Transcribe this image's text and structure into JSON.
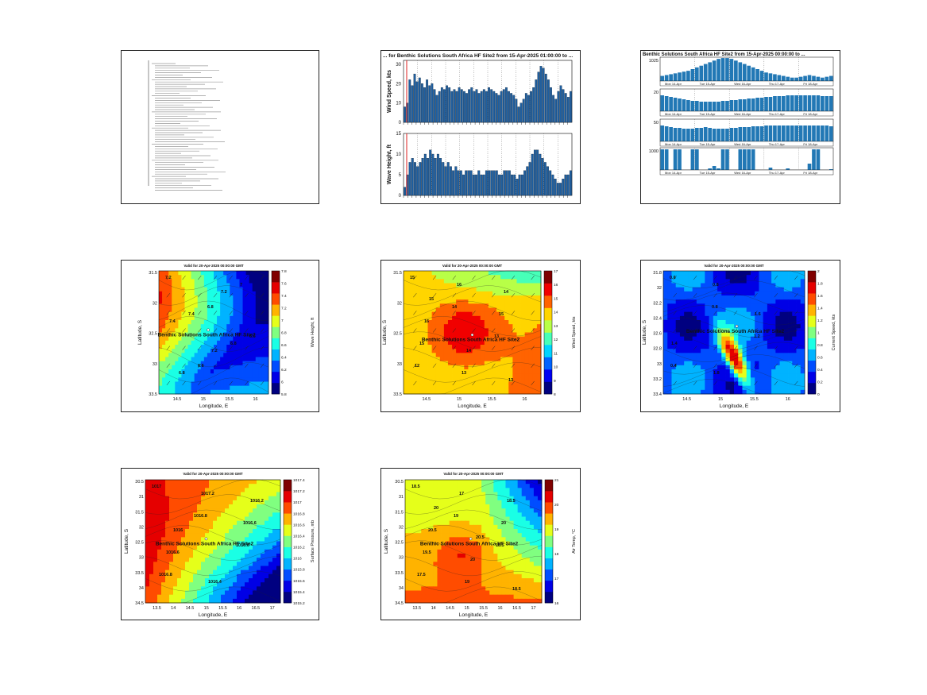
{
  "panels": [
    {
      "id": "report",
      "type": "text-report",
      "lines": 28
    },
    {
      "id": "wind-wave",
      "type": "bar",
      "title": "... for Benthic Solutions South Africa HF Site2 from 15-Apr-2025 01:00:00 to ...",
      "top": {
        "ylabel": "Wind Speed, kts",
        "yticks": [
          0,
          10,
          20,
          30
        ],
        "ylim": [
          0,
          32
        ]
      },
      "bottom": {
        "ylabel": "Wave Height, ft",
        "yticks": [
          0,
          5,
          10,
          15
        ],
        "ylim": [
          0,
          15
        ]
      }
    },
    {
      "id": "multi",
      "type": "bar",
      "title": "Benthic Solutions South Africa HF Site2 from 15-Apr-2025 00:00:00 to ...",
      "row_labels": [
        "1025",
        "20",
        "50",
        "1000"
      ],
      "xdates": [
        "Mon 14-Apr",
        "Tue 15-Apr",
        "Wed 16-Apr",
        "Thu 17-Apr",
        "Fri 18-Apr"
      ]
    },
    {
      "id": "wave-map",
      "type": "heatmap",
      "title": "Valid for 20-Apr-2025 00:00:00 GMT",
      "xlabel": "Longitude, E",
      "ylabel": "Latitude, S",
      "xticks": [
        "14.5",
        "15",
        "15.5",
        "16"
      ],
      "yticks": [
        "31.5",
        "32",
        "32.5",
        "33",
        "33.5"
      ],
      "cbar_label": "Wave Height, ft",
      "cbar_ticks": [
        "5.8",
        "6",
        "6.2",
        "6.4",
        "6.6",
        "6.8",
        "7",
        "7.2",
        "7.4",
        "7.6",
        "7.8"
      ],
      "site": "Benthic Solutions South Africa HF Site2",
      "contour_labels": [
        "7.2",
        "6.8",
        "6.6",
        "6.6",
        "7",
        "7.4",
        "6.8",
        "6.8",
        "7.2",
        "7.4",
        "7.2"
      ]
    },
    {
      "id": "wind-map",
      "type": "heatmap",
      "title": "Valid for 20-Apr-2025 00:00:00 GMT",
      "xlabel": "Longitude, E",
      "ylabel": "Latitude, S",
      "xticks": [
        "14.5",
        "15",
        "15.5",
        "16"
      ],
      "yticks": [
        "31.5",
        "32",
        "32.5",
        "33",
        "33.5"
      ],
      "cbar_label": "Wind Speed, kts",
      "cbar_ticks": [
        "8",
        "9",
        "10",
        "11",
        "12",
        "13",
        "14",
        "15",
        "16",
        "17"
      ],
      "site": "Benthic Solutions South Africa HF Site2",
      "contour_labels": [
        "15",
        "14",
        "13",
        "12",
        "16",
        "15",
        "15",
        "13",
        "14",
        "16",
        "14",
        "13",
        "15"
      ]
    },
    {
      "id": "current-map",
      "type": "heatmap",
      "title": "Valid for 20-Apr-2025 00:00:00 GMT",
      "xlabel": "Longitude, E",
      "ylabel": "Latitude, S",
      "xticks": [
        "14.5",
        "15",
        "15.5",
        "16"
      ],
      "yticks": [
        "31.8",
        "32",
        "32.2",
        "32.4",
        "32.6",
        "32.8",
        "33",
        "33.2",
        "33.4"
      ],
      "cbar_label": "Current Speed, kts",
      "cbar_ticks": [
        "0",
        "0.2",
        "0.4",
        "0.6",
        "0.8",
        "1",
        "1.2",
        "1.4",
        "1.6",
        "1.8",
        "2"
      ],
      "site": "Benthic Solutions South Africa HF Site2",
      "contour_labels": [
        "0.6",
        "0.8",
        "1.2",
        "0.4",
        "0.8",
        "1.6",
        "1.4",
        "1.8"
      ]
    },
    {
      "id": "pressure-map",
      "type": "heatmap",
      "title": "Valid for 20-Apr-2025 00:00:00 GMT",
      "xlabel": "Longitude, E",
      "ylabel": "Latitude, S",
      "xticks": [
        "13.5",
        "14",
        "14.5",
        "15",
        "15.5",
        "16",
        "16.5",
        "17"
      ],
      "yticks": [
        "30.5",
        "31",
        "31.5",
        "32",
        "32.5",
        "33",
        "33.5",
        "34",
        "34.5"
      ],
      "cbar_label": "Surface Pressure, mb",
      "cbar_ticks": [
        "1015.2",
        "1015.4",
        "1015.6",
        "1015.8",
        "1016",
        "1016.2",
        "1016.4",
        "1016.6",
        "1016.8",
        "1017",
        "1017.2",
        "1017.4"
      ],
      "site": "Benthic Solutions South Africa HF Site2",
      "contour_labels": [
        "1017",
        "1016.8",
        "1016.6",
        "1016.8",
        "1017.2",
        "1016.6",
        "1016.6",
        "1016.4",
        "1016.2",
        "1016"
      ]
    },
    {
      "id": "temp-map",
      "type": "heatmap",
      "title": "Valid for 20-Apr-2025 00:00:00 GMT",
      "xlabel": "Longitude, E",
      "ylabel": "Latitude, S",
      "xticks": [
        "13.5",
        "14",
        "14.5",
        "15",
        "15.5",
        "16",
        "16.5",
        "17"
      ],
      "yticks": [
        "30.5",
        "31",
        "31.5",
        "32",
        "32.5",
        "33",
        "33.5",
        "34",
        "34.5"
      ],
      "cbar_label": "Air Temp, °C",
      "cbar_ticks": [
        "16",
        "17",
        "18",
        "19",
        "20",
        "21"
      ],
      "site": "Benthic Solutions South Africa HF Site2",
      "contour_labels": [
        "18.5",
        "19",
        "18.5",
        "17.5",
        "17",
        "20",
        "19.5",
        "19",
        "18.5",
        "20.5",
        "20",
        "18.5",
        "20",
        "20.5"
      ]
    }
  ],
  "chart_data": [
    {
      "type": "bar",
      "title": "Wind Speed",
      "ylabel": "Wind Speed, kts",
      "ylim": [
        0,
        32
      ],
      "values": [
        8,
        10,
        22,
        19,
        25,
        21,
        23,
        20,
        18,
        22,
        19,
        20,
        17,
        14,
        16,
        18,
        17,
        19,
        18,
        16,
        17,
        16,
        18,
        17,
        16,
        15,
        17,
        18,
        16,
        17,
        15,
        16,
        17,
        16,
        18,
        17,
        16,
        15,
        14,
        16,
        17,
        18,
        16,
        15,
        14,
        12,
        8,
        10,
        12,
        15,
        14,
        16,
        18,
        22,
        26,
        29,
        28,
        25,
        22,
        18,
        14,
        12,
        16,
        19,
        17,
        15,
        13,
        16
      ]
    },
    {
      "type": "bar",
      "title": "Wave Height",
      "ylabel": "Wave Height, ft",
      "ylim": [
        0,
        15
      ],
      "values": [
        2,
        5,
        8,
        9,
        8,
        7,
        8,
        9,
        10,
        9,
        11,
        10,
        9,
        10,
        9,
        8,
        7,
        8,
        7,
        6,
        7,
        6,
        6,
        5,
        6,
        6,
        6,
        5,
        5,
        6,
        5,
        5,
        6,
        6,
        6,
        6,
        6,
        5,
        5,
        6,
        6,
        6,
        5,
        5,
        4,
        5,
        5,
        6,
        7,
        8,
        10,
        11,
        11,
        10,
        9,
        8,
        7,
        6,
        5,
        4,
        3,
        3,
        4,
        5,
        5,
        6
      ]
    }
  ]
}
